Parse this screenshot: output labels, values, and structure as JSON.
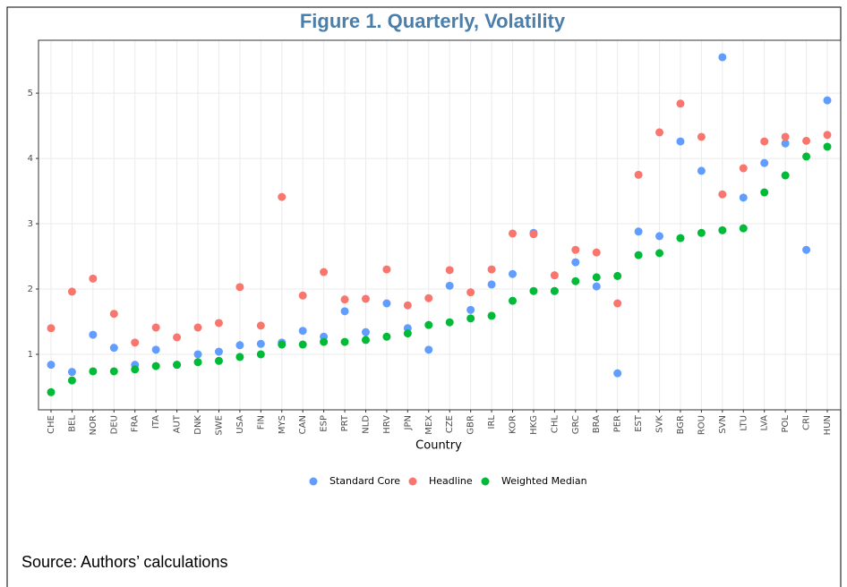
{
  "chart_data": {
    "type": "scatter",
    "title": "Figure 1. Quarterly, Volatility",
    "x_label": "Country",
    "source": "Source: Authors’ calculations",
    "categories": [
      "CHE",
      "BEL",
      "NOR",
      "DEU",
      "FRA",
      "ITA",
      "AUT",
      "DNK",
      "SWE",
      "USA",
      "FIN",
      "MYS",
      "CAN",
      "ESP",
      "PRT",
      "NLD",
      "HRV",
      "JPN",
      "MEX",
      "CZE",
      "GBR",
      "IRL",
      "KOR",
      "HKG",
      "CHL",
      "GRC",
      "BRA",
      "PER",
      "EST",
      "SVK",
      "BGR",
      "ROU",
      "SVN",
      "LTU",
      "LVA",
      "POL",
      "CRI",
      "HUN"
    ],
    "series": [
      {
        "name": "Standard Core",
        "color": "#619CFF",
        "values": [
          0.84,
          0.73,
          1.3,
          1.1,
          0.84,
          1.07,
          0.84,
          1.0,
          1.04,
          1.14,
          1.16,
          1.18,
          1.36,
          1.27,
          1.66,
          1.34,
          1.78,
          1.4,
          1.07,
          2.05,
          1.68,
          2.07,
          2.23,
          2.86,
          1.97,
          2.41,
          2.04,
          0.71,
          2.88,
          2.81,
          4.26,
          3.81,
          5.55,
          3.4,
          3.93,
          4.23,
          2.6,
          4.89
        ]
      },
      {
        "name": "Headline",
        "color": "#F8766D",
        "values": [
          1.4,
          1.96,
          2.16,
          1.62,
          1.18,
          1.41,
          1.26,
          1.41,
          1.48,
          2.03,
          1.44,
          3.41,
          1.9,
          2.26,
          1.84,
          1.85,
          2.3,
          1.75,
          1.86,
          2.29,
          1.95,
          2.3,
          2.85,
          2.84,
          2.21,
          2.6,
          2.56,
          1.78,
          3.75,
          4.4,
          4.84,
          4.33,
          3.45,
          3.85,
          4.26,
          4.33,
          4.27,
          4.36
        ]
      },
      {
        "name": "Weighted Median",
        "color": "#00BA38",
        "values": [
          0.42,
          0.6,
          0.74,
          0.74,
          0.77,
          0.82,
          0.84,
          0.88,
          0.9,
          0.96,
          1.0,
          1.15,
          1.15,
          1.19,
          1.19,
          1.22,
          1.27,
          1.32,
          1.45,
          1.49,
          1.55,
          1.59,
          1.82,
          1.97,
          1.97,
          2.12,
          2.18,
          2.2,
          2.52,
          2.55,
          2.78,
          2.86,
          2.9,
          2.93,
          3.48,
          3.74,
          4.03,
          4.18
        ]
      }
    ],
    "ylim": [
      0.15,
      5.81
    ],
    "yticks": [
      1,
      2,
      3,
      4,
      5
    ],
    "grid": true
  }
}
